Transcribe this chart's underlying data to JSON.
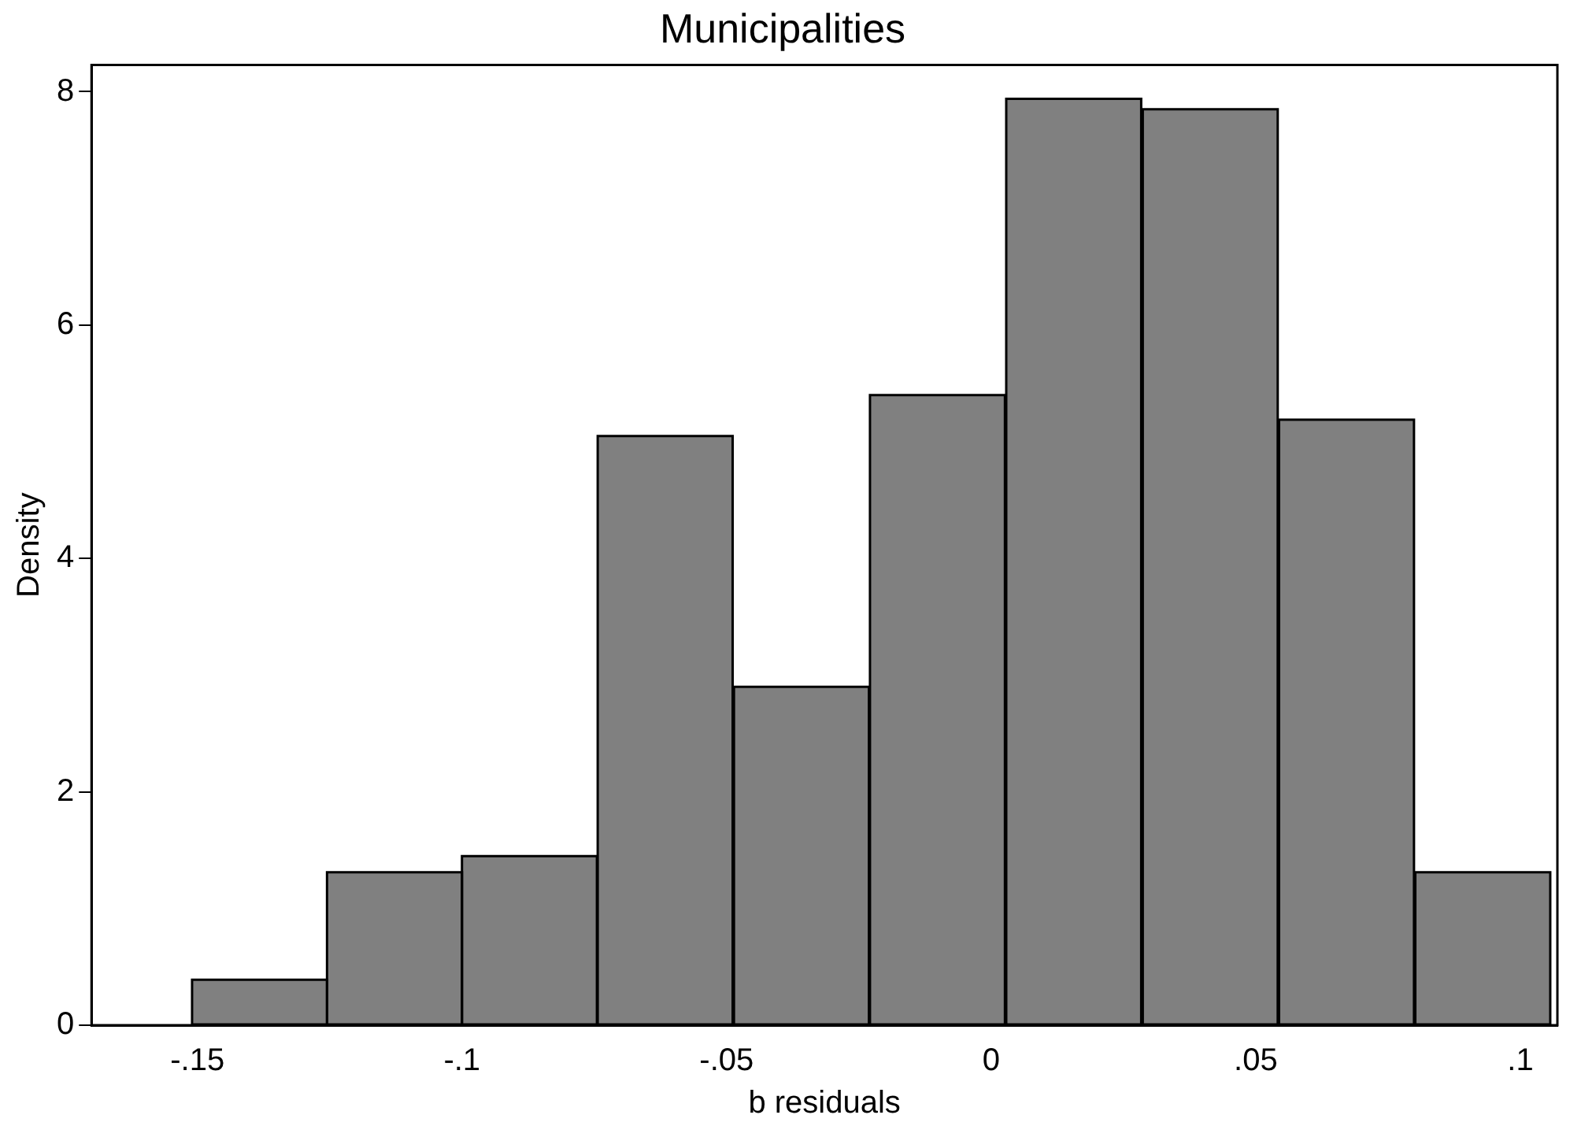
{
  "chart_data": {
    "type": "histogram",
    "title": "Municipalities",
    "xlabel": "b residuals",
    "ylabel": "Density",
    "bins": [
      -0.151,
      -0.1255,
      -0.1,
      -0.0745,
      -0.0487,
      -0.023,
      0.0027,
      0.0285,
      0.0543,
      0.08,
      0.1058
    ],
    "values": [
      0.39,
      1.31,
      1.45,
      5.05,
      2.9,
      5.4,
      7.94,
      7.85,
      5.19,
      1.31
    ],
    "color": "#808080",
    "xlim": [
      -0.17,
      0.107
    ],
    "xticks": [
      {
        "value": -0.15,
        "label": "-.15"
      },
      {
        "value": -0.1,
        "label": "-.1"
      },
      {
        "value": -0.05,
        "label": "-.05"
      },
      0,
      {
        "value": 0.05,
        "label": ".05"
      },
      {
        "value": 0.1,
        "label": ".1"
      }
    ],
    "ylim": [
      0,
      8.23
    ],
    "yticks": [
      0,
      2,
      4,
      6,
      8
    ],
    "grid": false,
    "legend": false
  }
}
